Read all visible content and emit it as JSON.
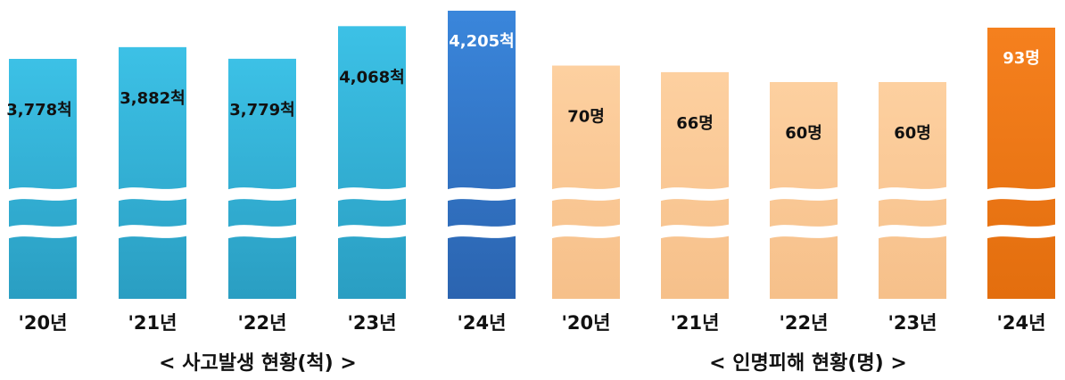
{
  "chart_data": [
    {
      "type": "bar",
      "title": "< 사고발생 현황(척) >",
      "categories": [
        "'20년",
        "'21년",
        "'22년",
        "'23년",
        "'24년"
      ],
      "values": [
        3778,
        3882,
        3779,
        4068,
        4205
      ],
      "value_labels": [
        "3,778척",
        "3,882척",
        "3,779척",
        "4,068척",
        "4,205척"
      ],
      "axis_break": true,
      "colors": {
        "bar": "#3cc1e6",
        "bar_bottom": "#2a9ec2",
        "highlight": "#3a86db",
        "highlight_bottom": "#2b64b0"
      },
      "highlight_index": 4
    },
    {
      "type": "bar",
      "title": "< 인명피해 현황(명) >",
      "categories": [
        "'20년",
        "'21년",
        "'22년",
        "'23년",
        "'24년"
      ],
      "values": [
        70,
        66,
        60,
        60,
        93
      ],
      "value_labels": [
        "70명",
        "66명",
        "60명",
        "60명",
        "93명"
      ],
      "axis_break": true,
      "colors": {
        "bar": "#fdd0a0",
        "bar_bottom": "#f6c08a",
        "highlight": "#f5801e",
        "highlight_bottom": "#e36e0e"
      },
      "highlight_index": 4
    }
  ]
}
